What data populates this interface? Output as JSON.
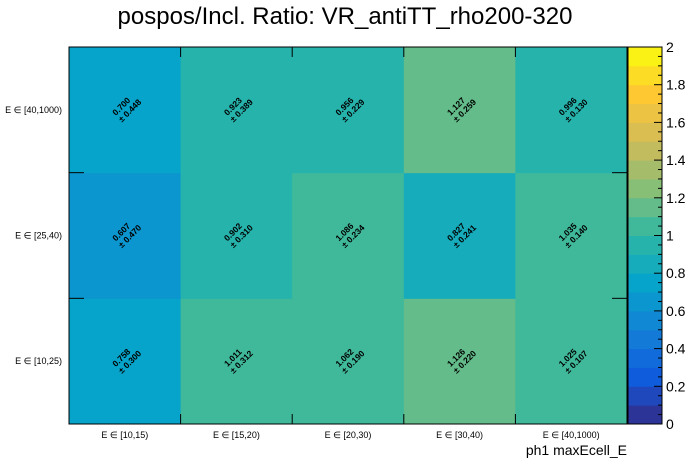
{
  "chart_data": {
    "type": "heatmap",
    "title": "pospos/Incl. Ratio: VR_antiTT_rho200-320",
    "xlabel": "ph1 maxEcell_E",
    "ylabel": "",
    "x_categories": [
      "E ∈ [10,15)",
      "E ∈ [15,20)",
      "E ∈ [20,30)",
      "E ∈ [30,40)",
      "E ∈ [40,1000)"
    ],
    "y_categories": [
      "E ∈ [10,25)",
      "E ∈ [25,40)",
      "E ∈ [40,1000)"
    ],
    "values": [
      [
        0.758,
        1.011,
        1.062,
        1.126,
        1.025
      ],
      [
        0.607,
        0.902,
        1.086,
        0.827,
        1.035
      ],
      [
        0.7,
        0.923,
        0.956,
        1.127,
        0.996
      ]
    ],
    "errors": [
      [
        0.3,
        0.312,
        0.19,
        0.22,
        0.107
      ],
      [
        0.47,
        0.31,
        0.234,
        0.241,
        0.14
      ],
      [
        0.448,
        0.389,
        0.229,
        0.259,
        0.13
      ]
    ],
    "cell_labels": [
      [
        [
          "0.758",
          "± 0.300"
        ],
        [
          "1.011",
          "± 0.312"
        ],
        [
          "1.062",
          "± 0.190"
        ],
        [
          "1.126",
          "± 0.220"
        ],
        [
          "1.025",
          "± 0.107"
        ]
      ],
      [
        [
          "0.607",
          "± 0.470"
        ],
        [
          "0.902",
          "± 0.310"
        ],
        [
          "1.086",
          "± 0.234"
        ],
        [
          "0.827",
          "± 0.241"
        ],
        [
          "1.035",
          "± 0.140"
        ]
      ],
      [
        [
          "0.700",
          "± 0.448"
        ],
        [
          "0.923",
          "± 0.389"
        ],
        [
          "0.956",
          "± 0.229"
        ],
        [
          "1.127",
          "± 0.259"
        ],
        [
          "0.996",
          "± 0.130"
        ]
      ]
    ],
    "zlim": [
      0,
      2
    ],
    "z_ticks": [
      "0",
      "0.2",
      "0.4",
      "0.6",
      "0.8",
      "1",
      "1.2",
      "1.4",
      "1.6",
      "1.8",
      "2"
    ],
    "colorbar": [
      "#352a87",
      "#0f5cdd",
      "#1481d6",
      "#06a4ca",
      "#2eb7a4",
      "#87bf77",
      "#d1bb59",
      "#fec832",
      "#f9fb0e"
    ]
  }
}
